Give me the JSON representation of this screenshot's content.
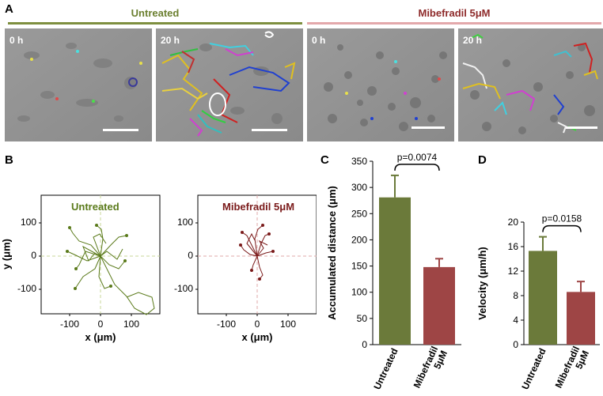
{
  "panels": {
    "A": {
      "letter": "A",
      "groups": [
        {
          "name": "Untreated",
          "color": "#6b7f2f"
        },
        {
          "name": "Mibefradil 5μM",
          "color": "#8e2a2a"
        }
      ],
      "timepoints": [
        "0 h",
        "20 h",
        "0 h",
        "20 h"
      ]
    },
    "B": {
      "letter": "B",
      "plots": [
        {
          "title": "Untreated",
          "color": "#5a7a1a",
          "axis_color": "#c9d79a"
        },
        {
          "title": "Mibefradil 5μM",
          "color": "#7a1a1a",
          "axis_color": "#e0a8a8"
        }
      ],
      "xlabel": "x (μm)",
      "ylabel": "y (μm)",
      "xticks": [
        "-100",
        "0",
        "100"
      ],
      "yticks": [
        "100",
        "0",
        "-100"
      ]
    },
    "C": {
      "letter": "C"
    },
    "D": {
      "letter": "D"
    }
  },
  "chart_data": [
    {
      "type": "bar",
      "categories": [
        "Untreated",
        "Mibefradil 5μM"
      ],
      "category_lines": [
        [
          "Untreated"
        ],
        [
          "Mibefradil",
          "5μM"
        ]
      ],
      "values": [
        281,
        148
      ],
      "errors": [
        42,
        16
      ],
      "colors": [
        "#6b7a3a",
        "#9e4545"
      ],
      "ylabel": "Accumulated distance (μm)",
      "ylim": [
        0,
        350
      ],
      "yticks": [
        0,
        50,
        100,
        150,
        200,
        250,
        300,
        350
      ],
      "annotation": "p=0.0074"
    },
    {
      "type": "bar",
      "categories": [
        "Untreated",
        "Mibefradil 5μM"
      ],
      "category_lines": [
        [
          "Untreated"
        ],
        [
          "Mibefradil",
          "5μM"
        ]
      ],
      "values": [
        15.3,
        8.6
      ],
      "errors": [
        2.3,
        1.7
      ],
      "colors": [
        "#6b7a3a",
        "#9e4545"
      ],
      "ylabel": "Velocity (μm/h)",
      "ylim": [
        0,
        20
      ],
      "yticks": [
        0,
        4,
        8,
        12,
        16,
        20
      ],
      "annotation": "p=0.0158"
    }
  ]
}
